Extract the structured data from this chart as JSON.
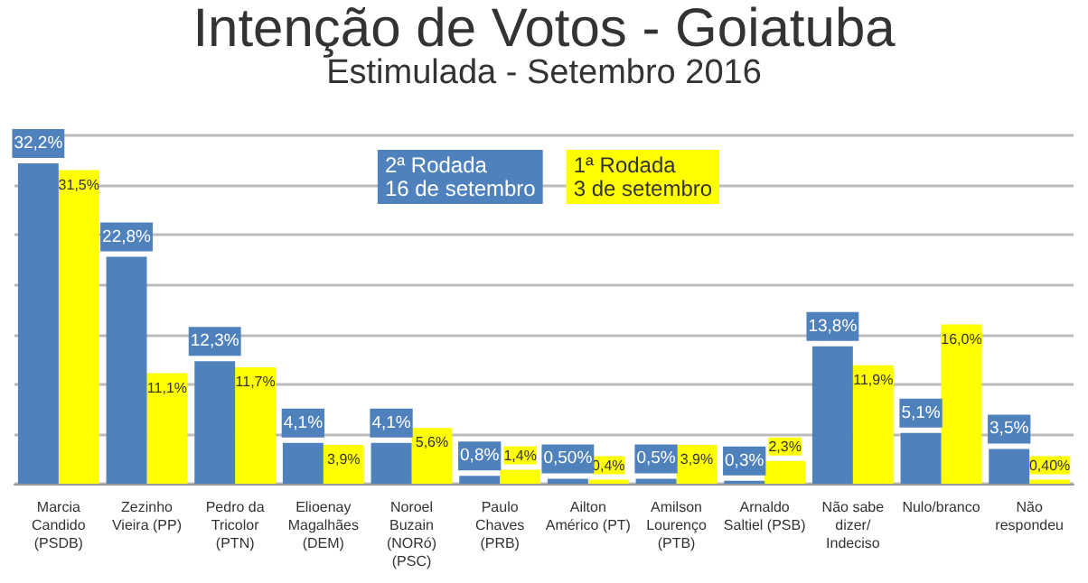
{
  "chart_data": {
    "type": "bar",
    "title": "Intenção de Votos - Goiatuba",
    "subtitle": "Estimulada - Setembro 2016",
    "categories": [
      "Marcia\nCandido\n(PSDB)",
      "Zezinho\nVieira (PP)",
      "Pedro da\nTricolor\n(PTN)",
      "Elioenay\nMagalhães\n(DEM)",
      "Noroel\nBuzain\n(NORó)\n(PSC)",
      "Paulo\nChaves\n(PRB)",
      "Ailton\nAmérico (PT)",
      "Amilson\nLourenço\n(PTB)",
      "Arnaldo\nSaltiel (PSB)",
      "Não sabe\ndizer/\nIndeciso",
      "Nulo/branco",
      "Não\nrespondeu"
    ],
    "series": [
      {
        "name": "2ª Rodada\n16 de setembro",
        "color": "#4f81bd",
        "values": [
          32.2,
          22.8,
          12.3,
          4.1,
          4.1,
          0.8,
          0.5,
          0.5,
          0.3,
          13.8,
          5.1,
          3.5
        ],
        "value_labels": [
          "32,2%",
          "22,8%",
          "12,3%",
          "4,1%",
          "4,1%",
          "0,8%",
          "0,50%",
          "0,5%",
          "0,3%",
          "13,8%",
          "5,1%",
          "3,5%"
        ]
      },
      {
        "name": "1ª Rodada\n3 de setembro",
        "color": "#ffff00",
        "values": [
          31.5,
          11.1,
          11.7,
          3.9,
          5.6,
          1.4,
          0.4,
          3.9,
          2.3,
          11.9,
          16.0,
          0.4
        ],
        "value_labels": [
          "31,5%",
          "11,1%",
          "11,7%",
          "3,9%",
          "5,6%",
          "1,4%",
          "0,4%",
          "3,9%",
          "2,3%",
          "11,9%",
          "16,0%",
          "0,40%"
        ]
      }
    ],
    "grid": "y",
    "legend": "top"
  }
}
